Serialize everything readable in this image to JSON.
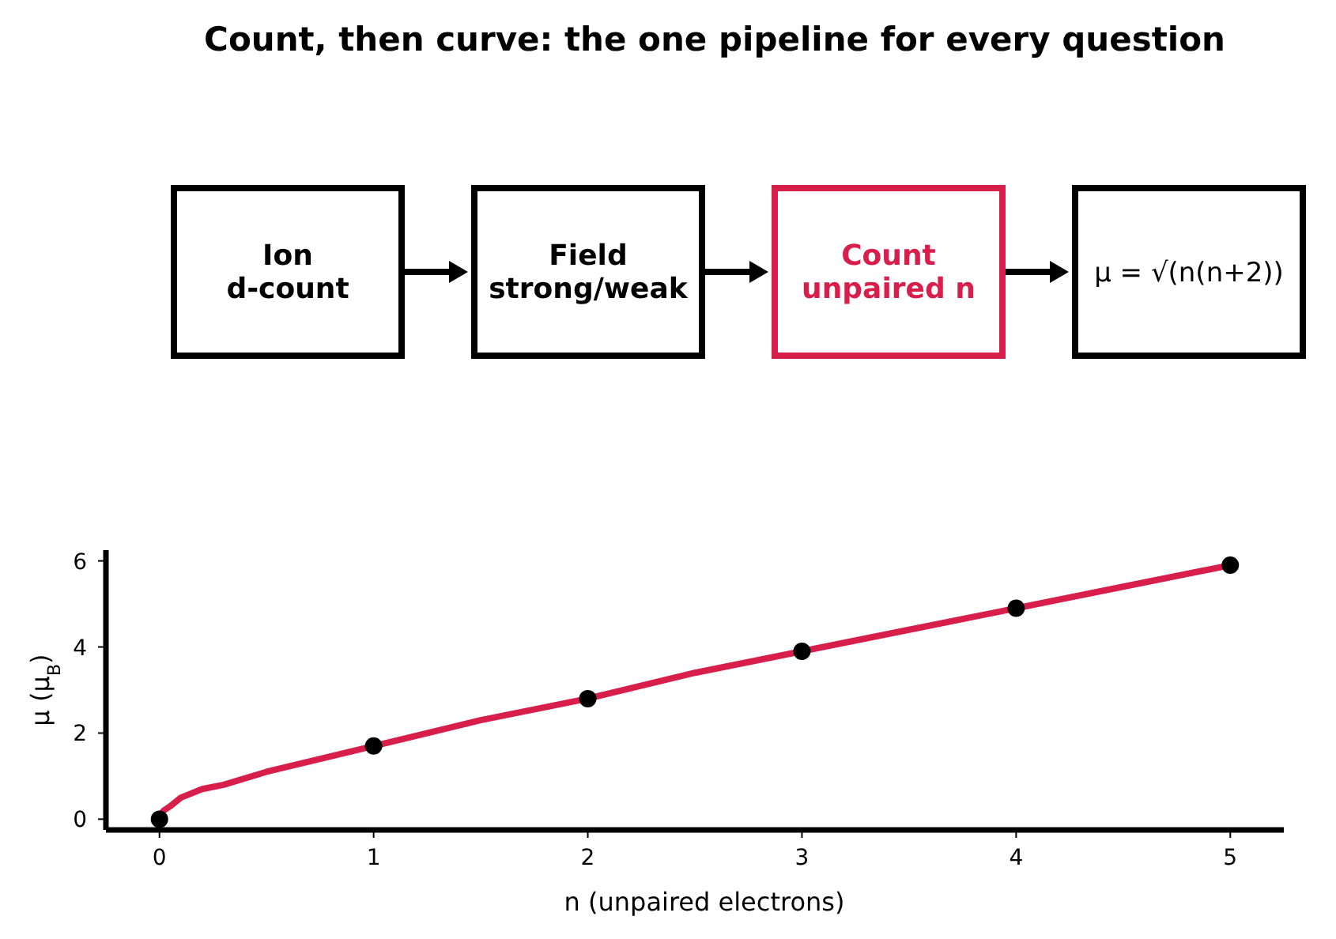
{
  "chart_data": [
    {
      "type": "other",
      "title": "Count, then curve: the one pipeline for every question",
      "categories": [
        "Ion\nd-count",
        "Field\nstrong/weak",
        "Count\nunpaired  n",
        "μ = √(n(n+2))"
      ],
      "colors": [
        "#000000",
        "#000000",
        "#d81f4c",
        "#000000"
      ]
    },
    {
      "type": "line",
      "xlabel": "n  (unpaired electrons)",
      "ylabel": "μ (μ$_{B}$)",
      "xlim": [
        -0.25,
        5.25
      ],
      "ylim": [
        -0.25,
        6.25
      ],
      "xticks": [
        0,
        1,
        2,
        3,
        4,
        5
      ],
      "yticks": [
        0,
        2,
        4,
        6
      ],
      "grid": false,
      "series": [
        {
          "color": "#d81f4c",
          "x": [
            0,
            0.01,
            0.02,
            0.05,
            0.1,
            0.2,
            0.3,
            0.5,
            0.75,
            1,
            1.5,
            2,
            2.5,
            3,
            3.5,
            4,
            4.5,
            5
          ],
          "values": [
            0,
            0.14,
            0.2,
            0.3,
            0.5,
            0.7,
            0.8,
            1.1,
            1.4,
            1.7,
            2.3,
            2.8,
            3.4,
            3.9,
            4.4,
            4.9,
            5.4,
            5.9
          ]
        },
        {
          "type": "scatter",
          "marker": "circle",
          "color": "#000000",
          "x": [
            0,
            1,
            2,
            3,
            4,
            5
          ],
          "values": [
            0,
            1.7,
            2.8,
            3.9,
            4.9,
            5.9
          ]
        }
      ]
    }
  ]
}
